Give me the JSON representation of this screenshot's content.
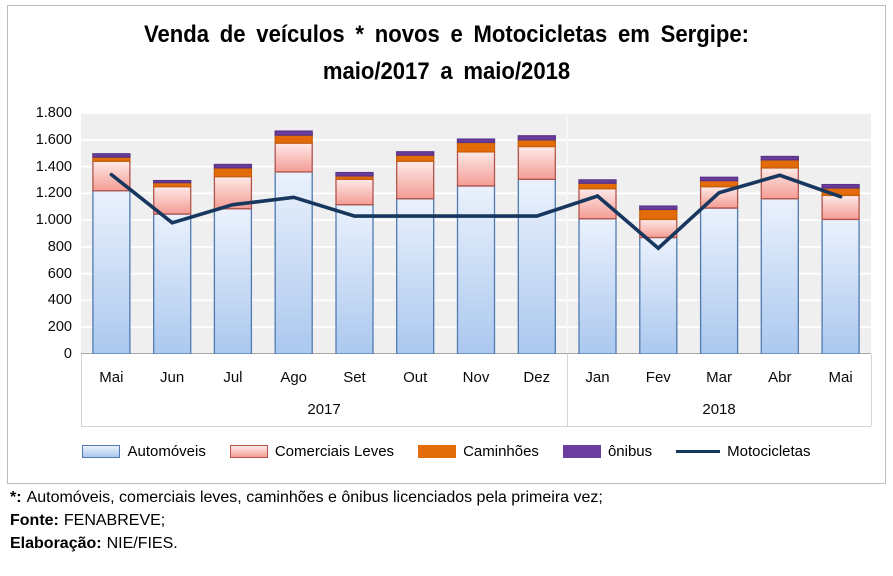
{
  "title": {
    "line1": "Venda de veículos * novos e Motocicletas em Sergipe:",
    "line2": "maio/2017 a maio/2018"
  },
  "chart_data": {
    "type": "bar",
    "subtype": "stacked-bars-with-line-overlay",
    "title": "Venda de veículos * novos e Motocicletas em Sergipe: maio/2017 a maio/2018",
    "categories": [
      "Mai",
      "Jun",
      "Jul",
      "Ago",
      "Set",
      "Out",
      "Nov",
      "Dez",
      "Jan",
      "Fev",
      "Mar",
      "Abr",
      "Mai"
    ],
    "category_groups": [
      {
        "label": "2017",
        "from": 0,
        "to": 7
      },
      {
        "label": "2018",
        "from": 8,
        "to": 12
      }
    ],
    "y_ticks": [
      "1.800",
      "1.600",
      "1.400",
      "1.200",
      "1.000",
      "800",
      "600",
      "400",
      "200",
      "0"
    ],
    "ylim": [
      0,
      1800
    ],
    "grid": true,
    "legend_position": "bottom",
    "bar_series": [
      {
        "name": "Automóveis",
        "values": [
          1220,
          1045,
          1085,
          1360,
          1115,
          1160,
          1255,
          1305,
          1010,
          870,
          1090,
          1160,
          1005
        ]
      },
      {
        "name": "Comerciais Leves",
        "values": [
          220,
          205,
          240,
          215,
          190,
          280,
          255,
          245,
          225,
          135,
          160,
          230,
          180
        ]
      },
      {
        "name": "Caminhões",
        "values": [
          30,
          30,
          65,
          60,
          25,
          45,
          70,
          50,
          40,
          75,
          45,
          60,
          55
        ]
      },
      {
        "name": "ônibus",
        "values": [
          25,
          15,
          25,
          30,
          25,
          25,
          25,
          30,
          25,
          25,
          25,
          25,
          25
        ]
      }
    ],
    "line_series": {
      "name": "Motocicletas",
      "values": [
        1340,
        980,
        1115,
        1170,
        1030,
        1030,
        1030,
        1030,
        1180,
        790,
        1205,
        1335,
        1175
      ]
    }
  },
  "colors": {
    "automoveis_fill_top": "#eaf1fc",
    "automoveis_fill_bottom": "#abc8ef",
    "automoveis_border": "#4f7ab2",
    "comerciais_fill_top": "#fdeae8",
    "comerciais_fill_bottom": "#f49c94",
    "comerciais_border": "#b2544c",
    "caminhoes_fill": "#e36c09",
    "caminhoes_border": "#c85f08",
    "onibus_fill": "#6a3d9e",
    "onibus_border": "#5a3386",
    "line": "#17375e",
    "plot_bg": "#efefef",
    "gridline": "#ffffff",
    "axis_line": "#a8a8a8"
  },
  "legend": {
    "items": [
      {
        "label": "Automóveis",
        "swatch": "gradient-blue-bar"
      },
      {
        "label": "Comerciais Leves",
        "swatch": "gradient-pink-bar"
      },
      {
        "label": "Caminhões",
        "swatch": "solid-orange"
      },
      {
        "label": "ônibus",
        "swatch": "solid-purple"
      },
      {
        "label": "Motocicletas",
        "swatch": "navy-line"
      }
    ]
  },
  "footnotes": [
    {
      "label": "*:",
      "text": "Automóveis, comerciais leves, caminhões e ônibus licenciados pela primeira vez;"
    },
    {
      "label": "Fonte:",
      "text": "FENABREVE;"
    },
    {
      "label": "Elaboração:",
      "text": "NIE/FIES."
    }
  ]
}
